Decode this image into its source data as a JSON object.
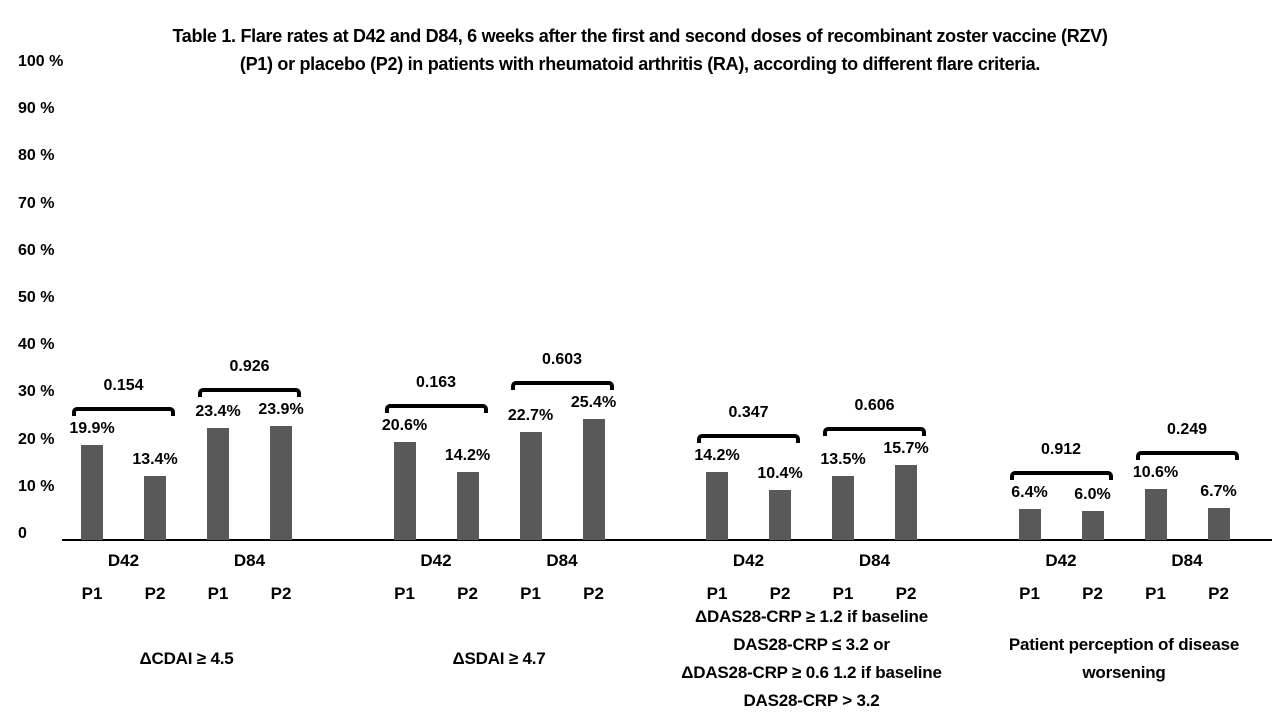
{
  "chart_data": {
    "type": "bar",
    "title_lines": [
      "Table 1. Flare rates at D42 and D84, 6 weeks after the first and second doses of recombinant zoster vaccine (RZV)",
      "(P1) or placebo (P2) in patients with rheumatoid arthritis (RA), according to different flare criteria."
    ],
    "y_axis": {
      "min": 0,
      "max": 100,
      "tick_values": [
        100,
        90,
        80,
        70,
        60,
        50,
        40,
        30,
        20,
        10,
        0
      ],
      "tick_labels": [
        "100 %",
        "90 %",
        "80 %",
        "70 %",
        "60 %",
        "50 %",
        "40 %",
        "30 %",
        "20 %",
        "10 %",
        "0"
      ]
    },
    "series": [
      "P1",
      "P2"
    ],
    "bar_color": "#595959",
    "axis_color": "#000000",
    "text_color": "#000000",
    "grid": "off",
    "legend": "none",
    "groups": [
      {
        "caption_lines": [
          "ΔCDAI ≥ 4.5"
        ],
        "timepoints": [
          {
            "label": "D42",
            "p_value": "0.154",
            "bars": [
              {
                "series": "P1",
                "value": 19.9,
                "display": "19.9%"
              },
              {
                "series": "P2",
                "value": 13.4,
                "display": "13.4%"
              }
            ]
          },
          {
            "label": "D84",
            "p_value": "0.926",
            "bars": [
              {
                "series": "P1",
                "value": 23.4,
                "display": "23.4%"
              },
              {
                "series": "P2",
                "value": 23.9,
                "display": "23.9%"
              }
            ]
          }
        ]
      },
      {
        "caption_lines": [
          "ΔSDAI ≥ 4.7"
        ],
        "timepoints": [
          {
            "label": "D42",
            "p_value": "0.163",
            "bars": [
              {
                "series": "P1",
                "value": 20.6,
                "display": "20.6%"
              },
              {
                "series": "P2",
                "value": 14.2,
                "display": "14.2%"
              }
            ]
          },
          {
            "label": "D84",
            "p_value": "0.603",
            "bars": [
              {
                "series": "P1",
                "value": 22.7,
                "display": "22.7%"
              },
              {
                "series": "P2",
                "value": 25.4,
                "display": "25.4%"
              }
            ]
          }
        ]
      },
      {
        "caption_lines": [
          "ΔDAS28-CRP ≥ 1.2 if baseline",
          "DAS28-CRP ≤ 3.2 or",
          "ΔDAS28-CRP ≥ 0.6 1.2 if baseline",
          "DAS28-CRP > 3.2"
        ],
        "timepoints": [
          {
            "label": "D42",
            "p_value": "0.347",
            "bars": [
              {
                "series": "P1",
                "value": 14.2,
                "display": "14.2%"
              },
              {
                "series": "P2",
                "value": 10.4,
                "display": "10.4%"
              }
            ]
          },
          {
            "label": "D84",
            "p_value": "0.606",
            "bars": [
              {
                "series": "P1",
                "value": 13.5,
                "display": "13.5%"
              },
              {
                "series": "P2",
                "value": 15.7,
                "display": "15.7%"
              }
            ]
          }
        ]
      },
      {
        "caption_lines": [
          "Patient perception of disease",
          "worsening"
        ],
        "timepoints": [
          {
            "label": "D42",
            "p_value": "0.912",
            "bars": [
              {
                "series": "P1",
                "value": 6.4,
                "display": "6.4%"
              },
              {
                "series": "P2",
                "value": 6.0,
                "display": "6.0%"
              }
            ]
          },
          {
            "label": "D84",
            "p_value": "0.249",
            "bars": [
              {
                "series": "P1",
                "value": 10.6,
                "display": "10.6%"
              },
              {
                "series": "P2",
                "value": 6.7,
                "display": "6.7%"
              }
            ]
          }
        ]
      }
    ]
  }
}
